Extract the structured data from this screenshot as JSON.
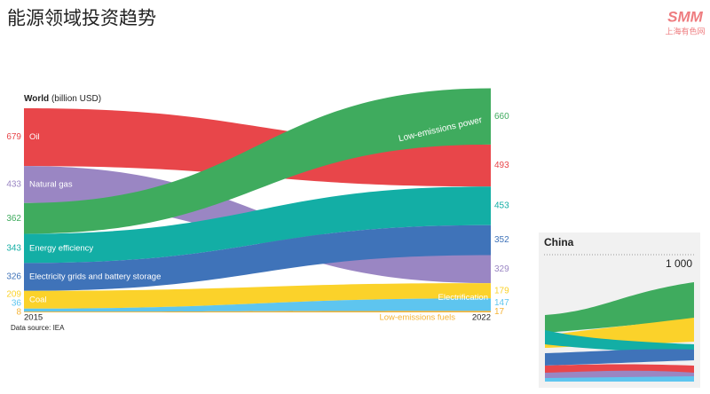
{
  "chart_data": {
    "type": "ranked-stream",
    "title": "能源领域投资趋势",
    "subtitle_bold": "World",
    "subtitle": "(billion USD)",
    "source": "Data source: IEA",
    "categories": [
      "2015",
      "2022"
    ],
    "series": [
      {
        "name": "Oil",
        "color": "#e8464a",
        "values": [
          679,
          493
        ]
      },
      {
        "name": "Natural gas",
        "color": "#9a86c3",
        "values": [
          433,
          329
        ]
      },
      {
        "name": "Low-emissions power",
        "color": "#3fab5e",
        "values": [
          362,
          660
        ]
      },
      {
        "name": "Energy efficiency",
        "color": "#13aea5",
        "values": [
          343,
          453
        ]
      },
      {
        "name": "Electricity grids and battery storage",
        "color": "#3f73b9",
        "values": [
          326,
          352
        ]
      },
      {
        "name": "Coal",
        "color": "#fbd22a",
        "values": [
          209,
          179
        ]
      },
      {
        "name": "Electrification",
        "color": "#5ec5ef",
        "values": [
          36,
          147
        ]
      },
      {
        "name": "Low-emissions fuels",
        "color": "#f5b335",
        "values": [
          8,
          17
        ]
      }
    ]
  },
  "inset": {
    "title": "China",
    "label": "1 000"
  },
  "logo": {
    "brand": "SMM",
    "name": "上海有色网"
  }
}
